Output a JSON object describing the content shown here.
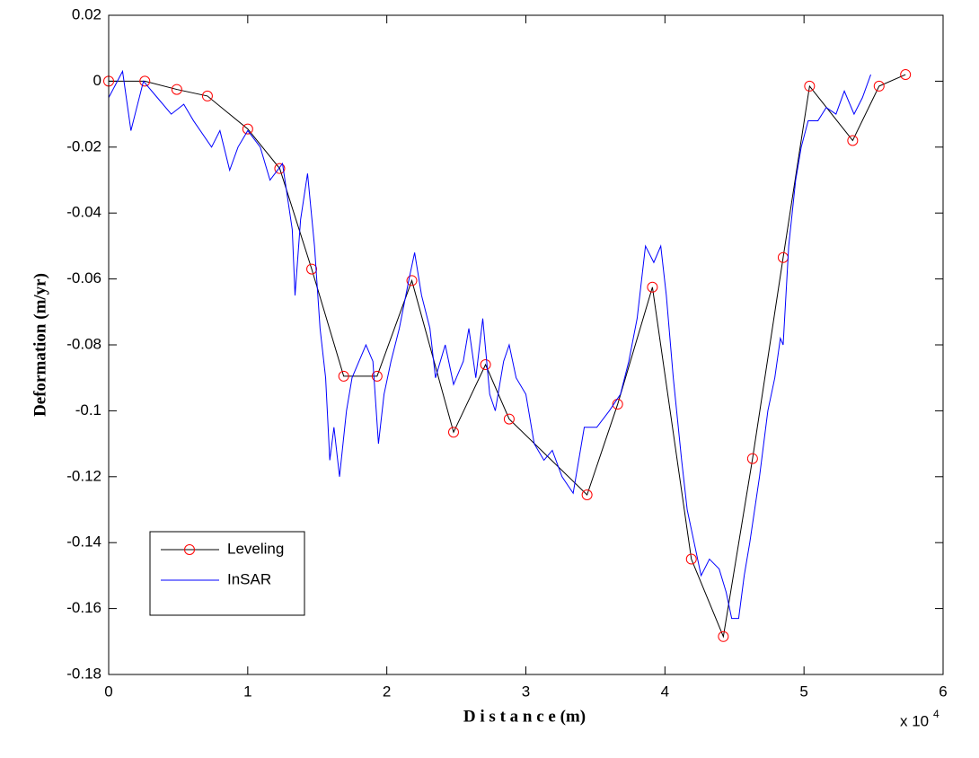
{
  "chart_data": {
    "type": "line",
    "xlabel": "D i s t a n c e (m)",
    "ylabel": "Deformation (m/yr)",
    "x_multiplier": "x 10",
    "x_multiplier_exponent": "4",
    "xlim": [
      0,
      6
    ],
    "xticks": [
      0,
      1,
      2,
      3,
      4,
      5,
      6
    ],
    "ylim": [
      -0.18,
      0.02
    ],
    "yticks": [
      0.02,
      0,
      -0.02,
      -0.04,
      -0.06,
      -0.08,
      -0.1,
      -0.12,
      -0.14,
      -0.16,
      -0.18
    ],
    "grid": false,
    "legend": "lower left",
    "series": [
      {
        "name": "Leveling",
        "color": "#000000",
        "marker_color": "#ff0000",
        "marker": "circle",
        "x": [
          0,
          0.26,
          0.49,
          0.71,
          1.0,
          1.23,
          1.46,
          1.69,
          1.93,
          2.18,
          2.48,
          2.71,
          2.88,
          3.44,
          3.66,
          3.91,
          4.19,
          4.42,
          4.63,
          4.85,
          5.04,
          5.35,
          5.54,
          5.73
        ],
        "values": [
          0,
          0,
          -0.0025,
          -0.0045,
          -0.0145,
          -0.0265,
          -0.057,
          -0.0895,
          -0.0895,
          -0.0605,
          -0.1065,
          -0.086,
          -0.1025,
          -0.1255,
          -0.098,
          -0.0625,
          -0.145,
          -0.1685,
          -0.1145,
          -0.0535,
          -0.0015,
          -0.018,
          -0.0015,
          0.002
        ]
      },
      {
        "name": "InSAR",
        "color": "#0000ff",
        "x": [
          0,
          0.1,
          0.16,
          0.25,
          0.35,
          0.45,
          0.54,
          0.61,
          0.74,
          0.8,
          0.87,
          0.93,
          1.0,
          1.09,
          1.16,
          1.25,
          1.32,
          1.34,
          1.38,
          1.43,
          1.48,
          1.52,
          1.56,
          1.59,
          1.62,
          1.66,
          1.71,
          1.75,
          1.8,
          1.85,
          1.9,
          1.94,
          1.98,
          2.03,
          2.09,
          2.16,
          2.2,
          2.25,
          2.31,
          2.35,
          2.42,
          2.48,
          2.55,
          2.59,
          2.64,
          2.69,
          2.74,
          2.78,
          2.84,
          2.88,
          2.93,
          3.0,
          3.06,
          3.13,
          3.19,
          3.26,
          3.34,
          3.42,
          3.51,
          3.6,
          3.68,
          3.74,
          3.8,
          3.86,
          3.92,
          3.97,
          4.01,
          4.06,
          4.12,
          4.16,
          4.21,
          4.26,
          4.32,
          4.39,
          4.44,
          4.48,
          4.53,
          4.57,
          4.61,
          4.68,
          4.74,
          4.79,
          4.83,
          4.85,
          4.89,
          4.94,
          4.98,
          5.03,
          5.1,
          5.16,
          5.23,
          5.29,
          5.36,
          5.42,
          5.48
        ],
        "values": [
          -0.005,
          0.003,
          -0.015,
          0,
          -0.005,
          -0.01,
          -0.007,
          -0.012,
          -0.02,
          -0.015,
          -0.027,
          -0.02,
          -0.015,
          -0.02,
          -0.03,
          -0.025,
          -0.045,
          -0.065,
          -0.042,
          -0.028,
          -0.05,
          -0.075,
          -0.09,
          -0.115,
          -0.105,
          -0.12,
          -0.1,
          -0.09,
          -0.085,
          -0.08,
          -0.085,
          -0.11,
          -0.095,
          -0.085,
          -0.075,
          -0.06,
          -0.052,
          -0.065,
          -0.075,
          -0.09,
          -0.08,
          -0.092,
          -0.085,
          -0.075,
          -0.09,
          -0.072,
          -0.095,
          -0.1,
          -0.085,
          -0.08,
          -0.09,
          -0.095,
          -0.11,
          -0.115,
          -0.112,
          -0.12,
          -0.125,
          -0.105,
          -0.105,
          -0.1,
          -0.095,
          -0.085,
          -0.072,
          -0.05,
          -0.055,
          -0.05,
          -0.065,
          -0.09,
          -0.115,
          -0.13,
          -0.14,
          -0.15,
          -0.145,
          -0.148,
          -0.155,
          -0.163,
          -0.163,
          -0.15,
          -0.14,
          -0.12,
          -0.1,
          -0.09,
          -0.078,
          -0.08,
          -0.05,
          -0.03,
          -0.02,
          -0.012,
          -0.012,
          -0.008,
          -0.01,
          -0.003,
          -0.01,
          -0.005,
          0.002
        ]
      }
    ]
  }
}
